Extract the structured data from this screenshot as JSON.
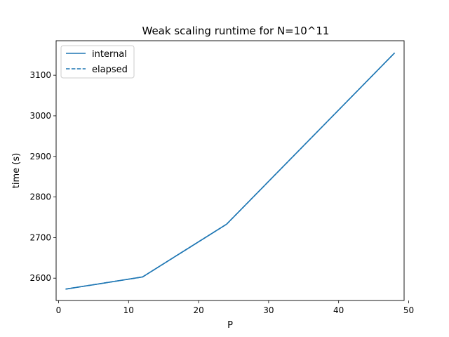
{
  "chart_data": {
    "type": "line",
    "title": "Weak scaling runtime for N=10^11",
    "xlabel": "P",
    "ylabel": "time (s)",
    "xlim": [
      -0.35,
      49.35
    ],
    "ylim": [
      2545,
      3185
    ],
    "xticks": [
      0,
      10,
      20,
      30,
      40,
      50
    ],
    "yticks": [
      2600,
      2700,
      2800,
      2900,
      3000,
      3100
    ],
    "grid": false,
    "legend_position": "top-left",
    "x": [
      1,
      12,
      24,
      48
    ],
    "series": [
      {
        "name": "internal",
        "style": "solid",
        "color": "#1f77b4",
        "values": [
          2573,
          2603,
          2733,
          3155
        ]
      },
      {
        "name": "elapsed",
        "style": "dashed",
        "color": "#1f77b4",
        "values": [
          2573,
          2603,
          2733,
          3155
        ]
      }
    ]
  }
}
